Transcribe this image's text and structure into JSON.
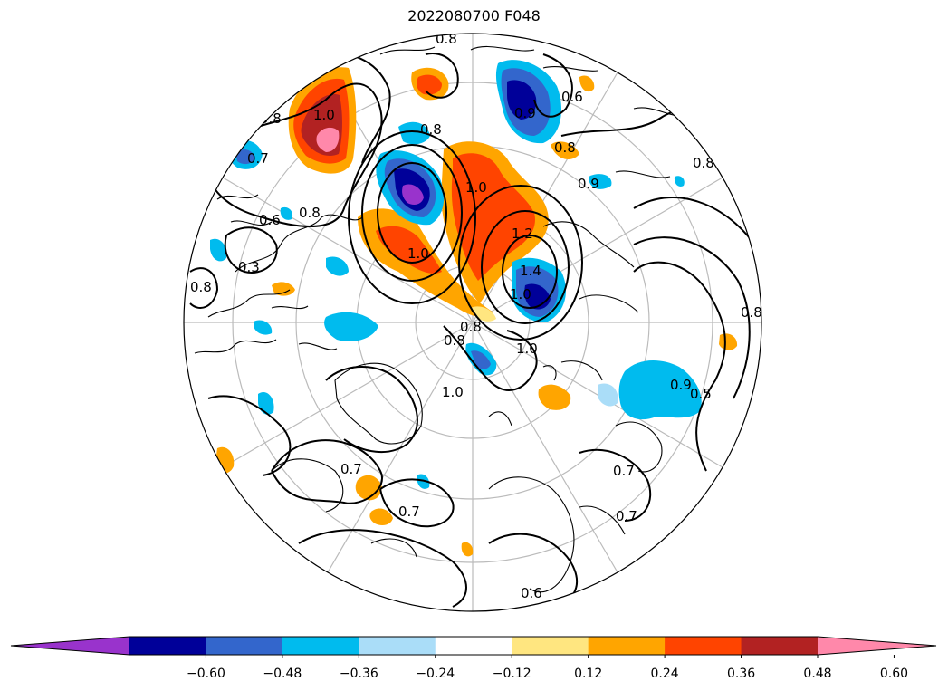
{
  "title": "2022080700 F048",
  "contour_labels": [
    "0.8",
    "0.8",
    "0.8",
    "0.8",
    "0.8",
    "0.8",
    "0.8",
    "0.8",
    "0.6",
    "0.6",
    "0.6",
    "0.7",
    "0.7",
    "0.7",
    "0.7",
    "0.7",
    "0.9",
    "0.9",
    "1.0",
    "1.0",
    "1.0",
    "1.0",
    "1.0",
    "1.2",
    "1.4",
    "1.0",
    "0.8",
    "0.9",
    "0.5",
    "0.3",
    "0.8"
  ],
  "colorbar": {
    "ticks": [
      "−0.60",
      "−0.48",
      "−0.36",
      "−0.24",
      "−0.12",
      "0.12",
      "0.24",
      "0.36",
      "0.48",
      "0.60"
    ],
    "colors": [
      "#9933cc",
      "#000099",
      "#3366cc",
      "#00bbee",
      "#aaddf8",
      "#ffffff",
      "#ffe680",
      "#ffa500",
      "#ff4400",
      "#b22222",
      "#ff88aa"
    ]
  },
  "shading_colors": {
    "strong_neg": "#9933cc",
    "neg_dark": "#000099",
    "neg_mid": "#3366cc",
    "neg_light": "#00bbee",
    "neg_pale": "#aaddf8",
    "pos_pale": "#ffe680",
    "pos_light": "#ffa500",
    "pos_mid": "#ff4400",
    "pos_dark": "#b22222",
    "strong_pos": "#ff88aa"
  }
}
